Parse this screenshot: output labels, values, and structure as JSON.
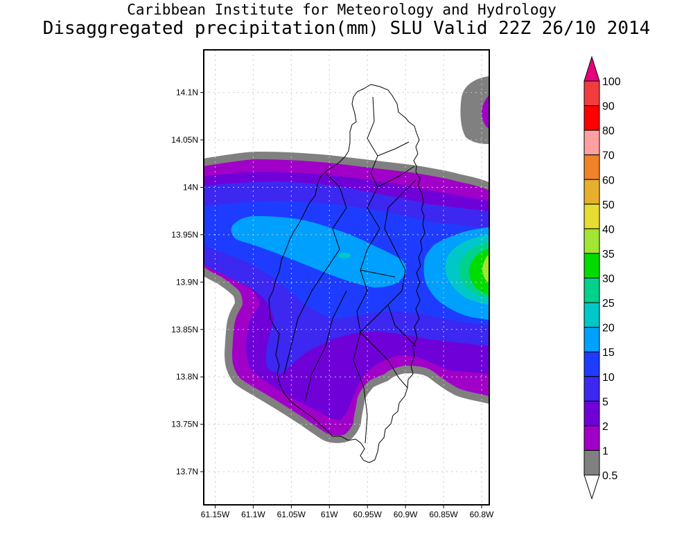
{
  "title": {
    "line1": "Caribbean Institute for Meteorology and Hydrology",
    "line2": "Disaggregated precipitation(mm) SLU Valid 22Z 26/10 2014"
  },
  "map": {
    "lon_range": [
      -61.165,
      -60.79
    ],
    "lat_range": [
      13.665,
      14.145
    ],
    "lon_ticks": [
      {
        "value": -61.15,
        "label": "61.15W"
      },
      {
        "value": -61.1,
        "label": "61.1W"
      },
      {
        "value": -61.05,
        "label": "61.05W"
      },
      {
        "value": -61.0,
        "label": "61W"
      },
      {
        "value": -60.95,
        "label": "60.95W"
      },
      {
        "value": -60.9,
        "label": "60.9W"
      },
      {
        "value": -60.85,
        "label": "60.85W"
      },
      {
        "value": -60.8,
        "label": "60.8W"
      }
    ],
    "lat_ticks": [
      {
        "value": 14.1,
        "label": "14.1N"
      },
      {
        "value": 14.05,
        "label": "14.05N"
      },
      {
        "value": 14.0,
        "label": "14N"
      },
      {
        "value": 13.95,
        "label": "13.95N"
      },
      {
        "value": 13.9,
        "label": "13.9N"
      },
      {
        "value": 13.85,
        "label": "13.85N"
      },
      {
        "value": 13.8,
        "label": "13.8N"
      },
      {
        "value": 13.75,
        "label": "13.75N"
      },
      {
        "value": 13.7,
        "label": "13.7N"
      }
    ]
  },
  "colorbar": {
    "labels": [
      "100",
      "90",
      "80",
      "70",
      "60",
      "50",
      "40",
      "35",
      "30",
      "25",
      "20",
      "15",
      "10",
      "5",
      "2",
      "1",
      "0.5"
    ],
    "colors": [
      "#f03c3c",
      "#ff0000",
      "#ffa0a0",
      "#f08228",
      "#e6af2d",
      "#e6dc32",
      "#a0e632",
      "#00dc00",
      "#00d28c",
      "#00c8c8",
      "#00a0ff",
      "#1e3cff",
      "#3c28f0",
      "#7000d8",
      "#a000c8",
      "#808080"
    ],
    "top_arrow_color": "#e6007d",
    "bottom_arrow_color": "#ffffff"
  }
}
